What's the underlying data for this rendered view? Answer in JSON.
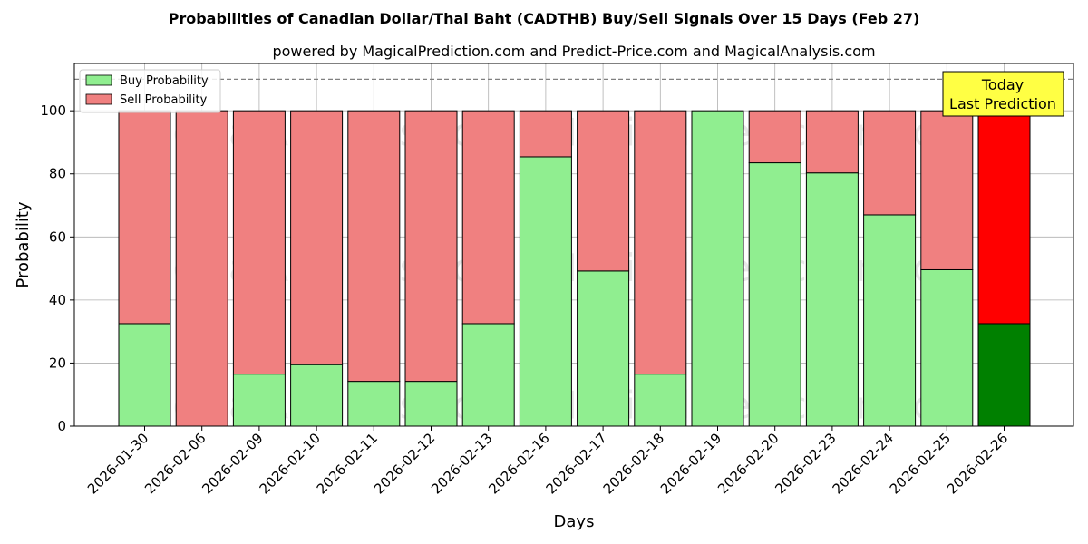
{
  "chart_data": {
    "type": "bar",
    "stacked": true,
    "title": "Probabilities of Canadian Dollar/Thai Baht (CADTHB) Buy/Sell Signals Over 15 Days (Feb 27)",
    "subtitle": "powered by MagicalPrediction.com and Predict-Price.com and MagicalAnalysis.com",
    "xlabel": "Days",
    "ylabel": "Probability",
    "ylim": [
      0,
      115
    ],
    "yticks": [
      0,
      20,
      40,
      60,
      80,
      100
    ],
    "grid": true,
    "legend_position": "top-left",
    "threshold_line": 110,
    "categories": [
      "2026-01-30",
      "2026-02-06",
      "2026-02-09",
      "2026-02-10",
      "2026-02-11",
      "2026-02-12",
      "2026-02-13",
      "2026-02-16",
      "2026-02-17",
      "2026-02-18",
      "2026-02-19",
      "2026-02-20",
      "2026-02-23",
      "2026-02-24",
      "2026-02-25",
      "2026-02-26"
    ],
    "series": [
      {
        "name": "Buy Probability",
        "color": "#90ee90",
        "values": [
          32.5,
          0,
          16.5,
          19.5,
          14.2,
          14.2,
          32.5,
          85.4,
          49.2,
          16.5,
          100,
          83.5,
          80.3,
          67,
          49.6,
          32.5
        ]
      },
      {
        "name": "Sell Probability",
        "color": "#f08080",
        "values": [
          67.5,
          100,
          83.5,
          80.5,
          85.8,
          85.8,
          67.5,
          14.6,
          50.8,
          83.5,
          0,
          16.5,
          19.7,
          33,
          50.4,
          67.5
        ]
      }
    ],
    "highlight": {
      "index": 15,
      "buy_color": "#008000",
      "sell_color": "#ff0000"
    },
    "annotation": {
      "lines": [
        "Today",
        "Last Prediction"
      ],
      "bg_color": "#ffff44"
    },
    "watermarks": [
      "MagicalAnalysis.com",
      "MagicalPrediction.com"
    ]
  }
}
